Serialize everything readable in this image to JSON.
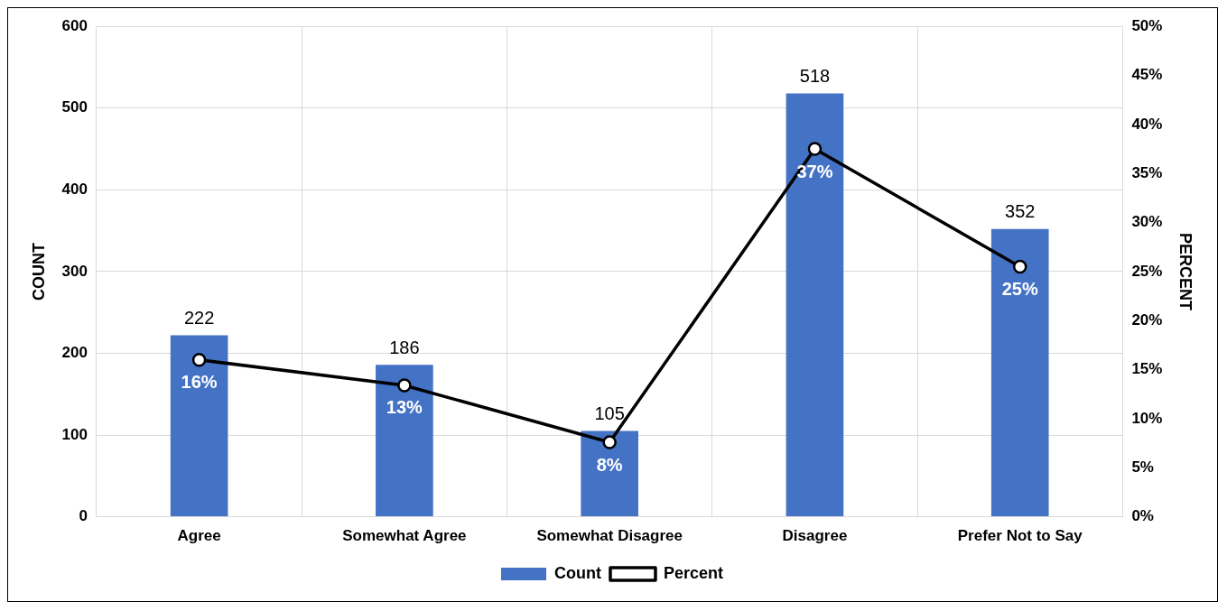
{
  "chart_data": {
    "type": "bar",
    "ylabel": "COUNT",
    "y2label": "PERCENT",
    "categories": [
      "Agree",
      "Somewhat Agree",
      "Somewhat Disagree",
      "Disagree",
      "Prefer Not to Say"
    ],
    "series": [
      {
        "name": "Count",
        "color": "#4472c4",
        "values": [
          222,
          186,
          105,
          518,
          352
        ],
        "value_labels": [
          "222",
          "186",
          "105",
          "518",
          "352"
        ]
      },
      {
        "name": "Percent",
        "type": "line",
        "axis": "y2",
        "color": "#000000",
        "values": [
          16,
          13.4,
          7.6,
          37.5,
          25.5
        ],
        "value_labels": [
          "16%",
          "13%",
          "8%",
          "37%",
          "25%"
        ]
      }
    ],
    "ylim": [
      0,
      600
    ],
    "yticks": [
      0,
      100,
      200,
      300,
      400,
      500,
      600
    ],
    "y2lim": [
      0,
      50
    ],
    "y2ticks": [
      {
        "value": 0,
        "label": "0%"
      },
      {
        "value": 5,
        "label": "5%"
      },
      {
        "value": 10,
        "label": "10%"
      },
      {
        "value": 15,
        "label": "15%"
      },
      {
        "value": 20,
        "label": "20%"
      },
      {
        "value": 25,
        "label": "25%"
      },
      {
        "value": 30,
        "label": "30%"
      },
      {
        "value": 35,
        "label": "35%"
      },
      {
        "value": 40,
        "label": "40%"
      },
      {
        "value": 45,
        "label": "45%"
      },
      {
        "value": 50,
        "label": "50%"
      }
    ],
    "grid": true,
    "legend": "bottom",
    "marker": "circle",
    "line_style": "solid"
  }
}
